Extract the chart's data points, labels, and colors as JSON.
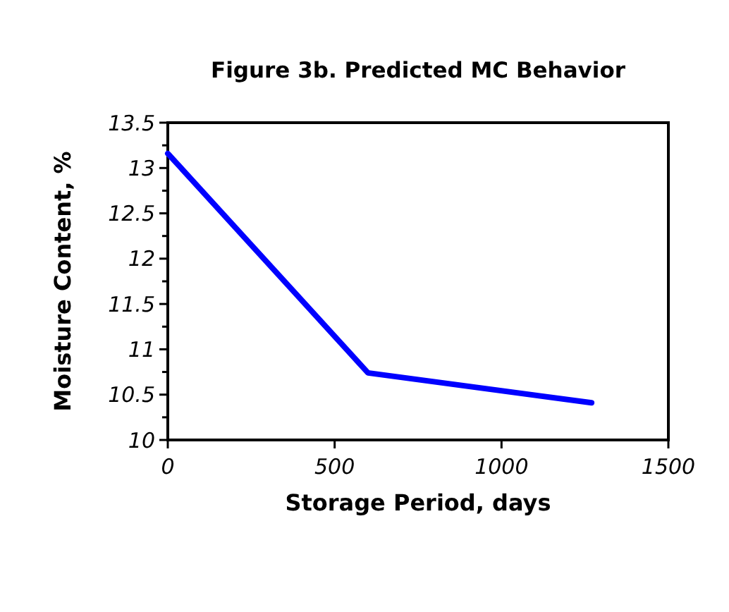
{
  "chart_data": {
    "type": "line",
    "title": "Figure 3b. Predicted MC Behavior",
    "xlabel": "Storage Period, days",
    "ylabel": "Moisture Content, %",
    "x": [
      0,
      600,
      1270
    ],
    "series": [
      {
        "color": "#0000ff",
        "values": [
          13.16,
          10.74,
          10.41
        ]
      }
    ],
    "xlim": [
      0,
      1500
    ],
    "xticks": [
      0,
      500,
      1000,
      1500
    ],
    "ylim": [
      10,
      13.5
    ],
    "yticks": [
      10,
      {
        "value": 10.25,
        "label": null
      },
      10.5,
      {
        "value": 10.75,
        "label": null
      },
      11,
      {
        "value": 11.25,
        "label": null
      },
      11.5,
      {
        "value": 11.75,
        "label": null
      },
      12,
      {
        "value": 12.25,
        "label": null
      },
      12.5,
      {
        "value": 12.75,
        "label": null
      },
      13,
      {
        "value": 13.25,
        "label": null
      },
      13.5
    ],
    "grid": false,
    "marker": "none",
    "line_style": "solid"
  }
}
